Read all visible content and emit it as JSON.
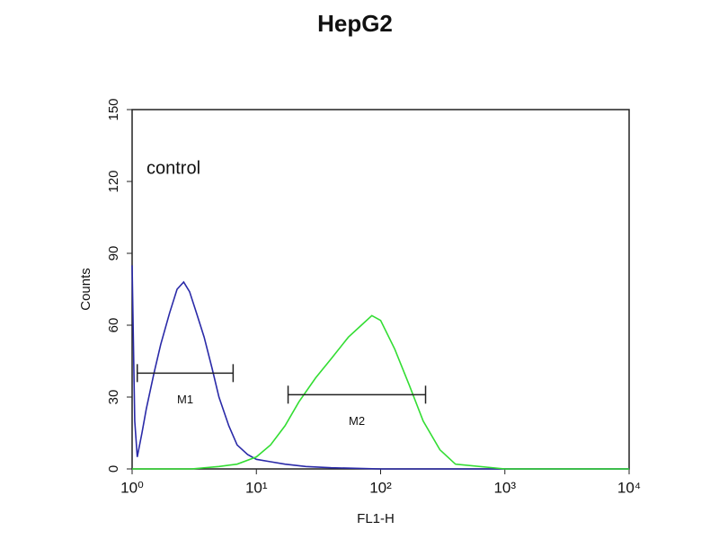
{
  "chart_data": {
    "type": "line",
    "title": "HepG2",
    "xlabel": "FL1-H",
    "ylabel": "Counts",
    "xscale": "log",
    "xlim": [
      1,
      10000
    ],
    "xticks": [
      {
        "value": 1,
        "label": "10⁰"
      },
      {
        "value": 10,
        "label": "10¹"
      },
      {
        "value": 100,
        "label": "10²"
      },
      {
        "value": 1000,
        "label": "10³"
      },
      {
        "value": 10000,
        "label": "10⁴"
      }
    ],
    "ylim": [
      0,
      150
    ],
    "yticks": [
      0,
      30,
      60,
      90,
      120,
      150
    ],
    "series": [
      {
        "name": "control",
        "color": "#2a2aa8",
        "x": [
          1,
          1.05,
          1.1,
          1.2,
          1.3,
          1.5,
          1.7,
          2.0,
          2.3,
          2.6,
          2.9,
          3.3,
          3.8,
          4.4,
          5,
          6,
          7,
          8.5,
          10,
          13,
          17,
          25,
          40,
          100,
          1000,
          10000
        ],
        "values": [
          85,
          20,
          5,
          15,
          25,
          40,
          52,
          65,
          75,
          78,
          74,
          65,
          55,
          42,
          30,
          18,
          10,
          6,
          4,
          3,
          2,
          1,
          0.5,
          0,
          0,
          0
        ]
      },
      {
        "color": "#33dd33",
        "x": [
          1,
          3,
          5,
          7,
          10,
          13,
          17,
          22,
          30,
          40,
          55,
          70,
          85,
          100,
          130,
          170,
          220,
          300,
          400,
          1000,
          10000
        ],
        "values": [
          0,
          0,
          1,
          2,
          5,
          10,
          18,
          28,
          38,
          46,
          55,
          60,
          64,
          62,
          50,
          35,
          20,
          8,
          2,
          0,
          0
        ]
      }
    ],
    "gates": [
      {
        "label": "M1",
        "range": [
          1.1,
          6.5
        ],
        "y": 40
      },
      {
        "label": "M2",
        "range": [
          18,
          230
        ],
        "y": 31
      }
    ]
  }
}
